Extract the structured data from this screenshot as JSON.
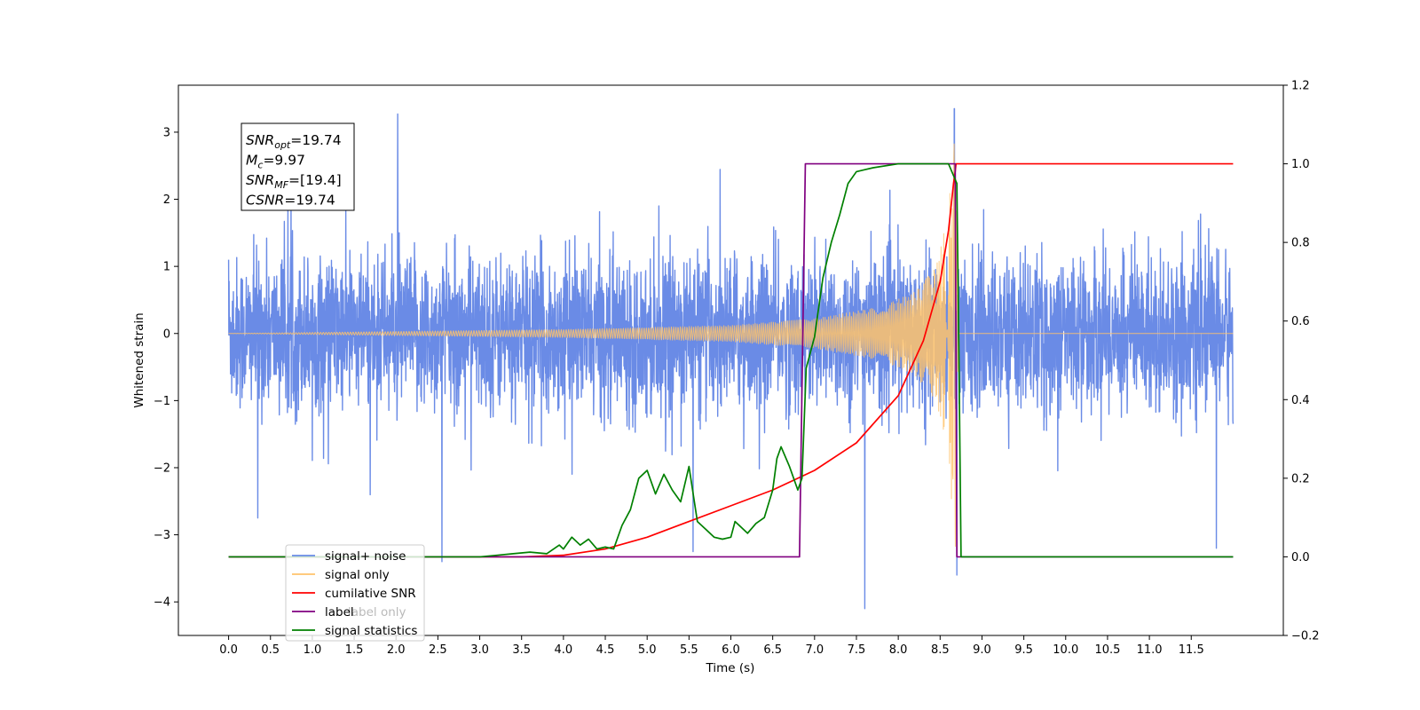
{
  "chart_data": {
    "type": "line",
    "xlabel": "Time (s)",
    "ylabel": "Whitened strain",
    "xlim": [
      -0.6,
      12.6
    ],
    "ylim_left": [
      -4.5,
      3.7
    ],
    "ylim_right": [
      -0.2,
      1.2
    ],
    "x_ticks": [
      0.0,
      0.5,
      1.0,
      1.5,
      2.0,
      2.5,
      3.0,
      3.5,
      4.0,
      4.5,
      5.0,
      5.5,
      6.0,
      6.5,
      7.0,
      7.5,
      8.0,
      8.5,
      9.0,
      9.5,
      10.0,
      10.5,
      11.0,
      11.5
    ],
    "x_tick_labels": [
      "0.0",
      "0.5",
      "1.0",
      "1.5",
      "2.0",
      "2.5",
      "3.0",
      "3.5",
      "4.0",
      "4.5",
      "5.0",
      "5.5",
      "6.0",
      "6.5",
      "7.0",
      "7.5",
      "8.0",
      "8.5",
      "9.0",
      "9.5",
      "10.0",
      "10.5",
      "11.0",
      "11.5"
    ],
    "y_ticks_left": [
      -4,
      -3,
      -2,
      -1,
      0,
      1,
      2,
      3
    ],
    "y_tick_labels_left": [
      "−4",
      "−3",
      "−2",
      "−1",
      "0",
      "1",
      "2",
      "3"
    ],
    "y_ticks_right": [
      -0.2,
      0.0,
      0.2,
      0.4,
      0.6,
      0.8,
      1.0,
      1.2
    ],
    "y_tick_labels_right": [
      "−0.2",
      "0.0",
      "0.2",
      "0.4",
      "0.6",
      "0.8",
      "1.0",
      "1.2"
    ],
    "legend": {
      "placement": "lower-left",
      "entries": [
        {
          "label": "signal+ noise",
          "color": "#6a8be6"
        },
        {
          "label": "signal only",
          "color": "#ffc36b"
        },
        {
          "label": "cumilative SNR",
          "color": "#ff0000"
        },
        {
          "label": "label",
          "color": "#800080"
        },
        {
          "label": "signal statistics",
          "color": "#008000"
        }
      ],
      "hidden_text": [
        "label only"
      ]
    },
    "annotation": {
      "lines": [
        {
          "sym": "SNR",
          "sub": "opt",
          "val": "=19.74"
        },
        {
          "sym": "M",
          "sub": "c",
          "val": "=9.97"
        },
        {
          "sym": "SNR",
          "sub": "MF",
          "val": "=[19.4]"
        },
        {
          "sym": "CSNR",
          "sub": "",
          "val": "=19.74"
        }
      ]
    },
    "series": [
      {
        "name": "signal+ noise",
        "axis": "left",
        "kind": "noise",
        "color": "#6a8be6",
        "x_start": 0.0,
        "x_end": 12.0,
        "sigma": 0.9,
        "spikes": [
          [
            0.0,
            1.1
          ],
          [
            0.35,
            -2.75
          ],
          [
            2.02,
            3.27
          ],
          [
            2.55,
            -3.4
          ],
          [
            5.55,
            -3.25
          ],
          [
            7.6,
            -4.1
          ],
          [
            8.67,
            3.35
          ],
          [
            8.7,
            -3.6
          ],
          [
            11.8,
            -3.2
          ]
        ]
      },
      {
        "name": "signal only",
        "axis": "left",
        "kind": "chirp",
        "color": "#ffc36b",
        "x_start": 0.0,
        "x_end": 12.0,
        "merger_time": 8.68,
        "envelope": [
          [
            0.0,
            0.0
          ],
          [
            4.0,
            0.06
          ],
          [
            6.0,
            0.12
          ],
          [
            7.0,
            0.22
          ],
          [
            7.8,
            0.4
          ],
          [
            8.2,
            0.62
          ],
          [
            8.45,
            1.0
          ],
          [
            8.6,
            1.8
          ],
          [
            8.68,
            3.3
          ],
          [
            8.72,
            0.0
          ],
          [
            12.0,
            0.0
          ]
        ]
      },
      {
        "name": "cumilative SNR",
        "axis": "right",
        "color": "#ff0000",
        "x": [
          0.0,
          3.5,
          4.0,
          4.5,
          5.0,
          5.5,
          6.0,
          6.5,
          7.0,
          7.5,
          8.0,
          8.3,
          8.5,
          8.6,
          8.66,
          8.68,
          8.69,
          12.0
        ],
        "values": [
          0.0,
          0.0,
          0.004,
          0.02,
          0.05,
          0.09,
          0.13,
          0.17,
          0.22,
          0.29,
          0.41,
          0.55,
          0.7,
          0.83,
          0.95,
          0.98,
          1.0,
          1.0
        ]
      },
      {
        "name": "label",
        "axis": "right",
        "color": "#800080",
        "x": [
          0.0,
          6.82,
          6.89,
          8.68,
          8.7,
          12.0
        ],
        "values": [
          0.0,
          0.0,
          1.0,
          1.0,
          0.0,
          0.0
        ]
      },
      {
        "name": "signal statistics",
        "axis": "right",
        "color": "#008000",
        "x": [
          0.0,
          2.5,
          3.0,
          3.2,
          3.4,
          3.6,
          3.8,
          3.95,
          4.0,
          4.1,
          4.2,
          4.3,
          4.4,
          4.5,
          4.6,
          4.7,
          4.8,
          4.9,
          5.0,
          5.1,
          5.2,
          5.3,
          5.4,
          5.5,
          5.6,
          5.7,
          5.8,
          5.9,
          6.0,
          6.05,
          6.1,
          6.2,
          6.3,
          6.4,
          6.5,
          6.55,
          6.6,
          6.7,
          6.8,
          6.85,
          6.9,
          6.95,
          7.0,
          7.1,
          7.2,
          7.3,
          7.4,
          7.5,
          7.6,
          7.7,
          8.0,
          8.6,
          8.7,
          8.72,
          8.75,
          12.0
        ],
        "values": [
          0.0,
          0.0,
          0.0,
          0.004,
          0.008,
          0.012,
          0.008,
          0.03,
          0.02,
          0.05,
          0.03,
          0.045,
          0.02,
          0.025,
          0.02,
          0.08,
          0.12,
          0.2,
          0.22,
          0.16,
          0.21,
          0.17,
          0.14,
          0.23,
          0.09,
          0.07,
          0.05,
          0.045,
          0.05,
          0.09,
          0.08,
          0.06,
          0.085,
          0.1,
          0.17,
          0.25,
          0.28,
          0.23,
          0.17,
          0.2,
          0.48,
          0.52,
          0.56,
          0.71,
          0.8,
          0.87,
          0.95,
          0.98,
          0.985,
          0.99,
          1.0,
          1.0,
          0.95,
          0.6,
          0.0,
          0.0
        ]
      }
    ]
  }
}
